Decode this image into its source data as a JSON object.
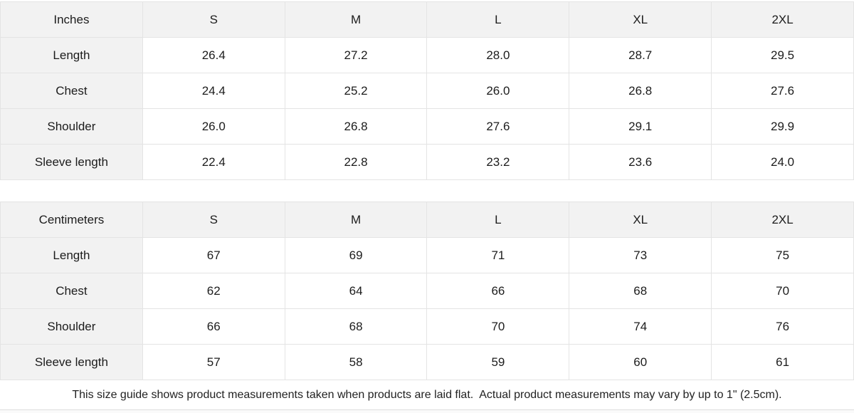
{
  "tables": [
    {
      "unit_label": "Inches",
      "sizes": [
        "S",
        "M",
        "L",
        "XL",
        "2XL"
      ],
      "rows": [
        {
          "label": "Length",
          "values": [
            "26.4",
            "27.2",
            "28.0",
            "28.7",
            "29.5"
          ]
        },
        {
          "label": "Chest",
          "values": [
            "24.4",
            "25.2",
            "26.0",
            "26.8",
            "27.6"
          ]
        },
        {
          "label": "Shoulder",
          "values": [
            "26.0",
            "26.8",
            "27.6",
            "29.1",
            "29.9"
          ]
        },
        {
          "label": "Sleeve length",
          "values": [
            "22.4",
            "22.8",
            "23.2",
            "23.6",
            "24.0"
          ]
        }
      ]
    },
    {
      "unit_label": "Centimeters",
      "sizes": [
        "S",
        "M",
        "L",
        "XL",
        "2XL"
      ],
      "rows": [
        {
          "label": "Length",
          "values": [
            "67",
            "69",
            "71",
            "73",
            "75"
          ]
        },
        {
          "label": "Chest",
          "values": [
            "62",
            "64",
            "66",
            "68",
            "70"
          ]
        },
        {
          "label": "Shoulder",
          "values": [
            "66",
            "68",
            "70",
            "74",
            "76"
          ]
        },
        {
          "label": "Sleeve length",
          "values": [
            "57",
            "58",
            "59",
            "60",
            "61"
          ]
        }
      ]
    }
  ],
  "footer": {
    "note": "This size guide shows product measurements taken when products are laid flat.  Actual product measurements may vary by up to 1\" (2.5cm)."
  },
  "colors": {
    "header_bg": "#f2f2f2",
    "cell_bg": "#ffffff",
    "border": "#e4e4e4",
    "text": "#1c1c1c"
  }
}
